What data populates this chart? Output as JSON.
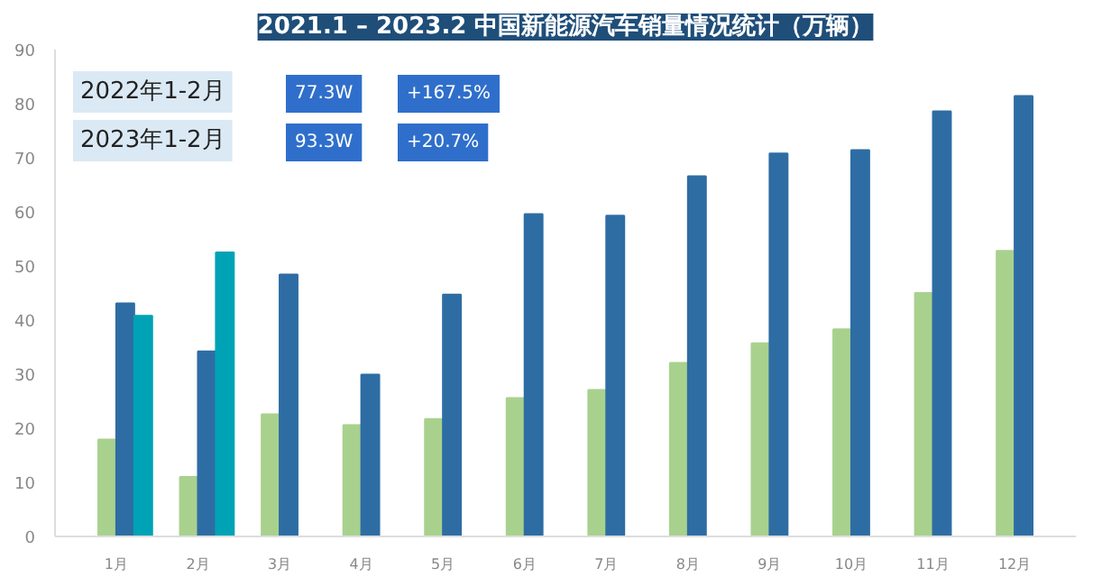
{
  "chart_data": {
    "type": "bar",
    "title": "2021.1 – 2023.2 中国新能源汽车销量情况统计（万辆）",
    "categories": [
      "1月",
      "2月",
      "3月",
      "4月",
      "5月",
      "6月",
      "7月",
      "8月",
      "9月",
      "10月",
      "11月",
      "12月"
    ],
    "series": [
      {
        "color": "#a9d18e",
        "values": [
          17.9,
          11.0,
          22.6,
          20.6,
          21.7,
          25.6,
          27.1,
          32.1,
          35.7,
          38.3,
          45.0,
          52.8
        ]
      },
      {
        "color": "#2e6da4",
        "values": [
          43.1,
          34.2,
          48.4,
          29.9,
          44.7,
          59.6,
          59.3,
          66.6,
          70.8,
          71.4,
          78.6,
          81.4
        ]
      },
      {
        "color": "#00a2b5",
        "values": [
          40.8,
          52.5,
          null,
          null,
          null,
          null,
          null,
          null,
          null,
          null,
          null,
          null
        ]
      }
    ],
    "ylim": [
      0,
      90
    ],
    "yticks": [
      0,
      10,
      20,
      30,
      40,
      50,
      60,
      70,
      80,
      90
    ],
    "grid": false,
    "annotations": [
      "2022年1-2月",
      "77.3W",
      "+167.5%",
      "2023年1-2月",
      "93.3W",
      "+20.7%"
    ]
  }
}
